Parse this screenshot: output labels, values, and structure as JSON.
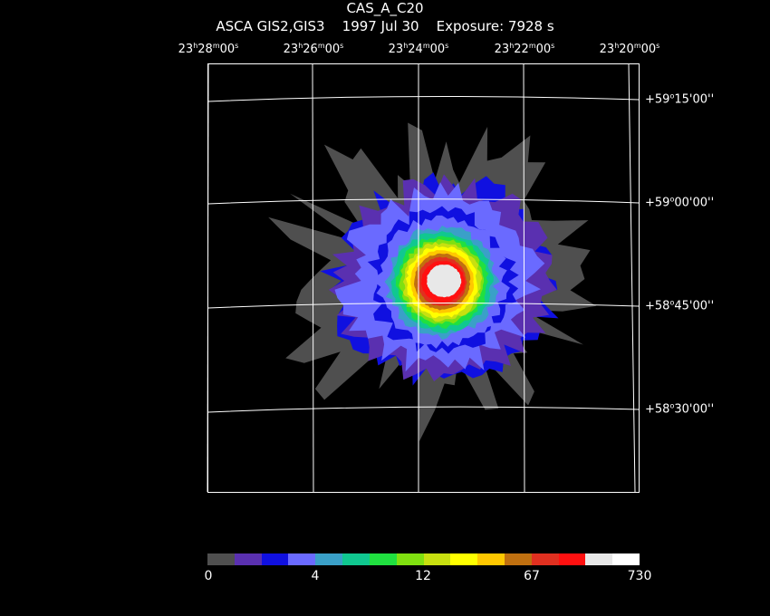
{
  "header": {
    "object": "CAS_A_C20",
    "instrument": "ASCA GIS2,GIS3",
    "date": "1997 Jul 30",
    "exposure": "Exposure: 7928 s"
  },
  "ra_labels": [
    {
      "h": "23",
      "m": "28",
      "s": "00"
    },
    {
      "h": "23",
      "m": "26",
      "s": "00"
    },
    {
      "h": "23",
      "m": "24",
      "s": "00"
    },
    {
      "h": "23",
      "m": "22",
      "s": "00"
    },
    {
      "h": "23",
      "m": "20",
      "s": "00"
    }
  ],
  "dec_labels": [
    {
      "d": "+59",
      "m": "15",
      "s": "00"
    },
    {
      "d": "+59",
      "m": "00",
      "s": "00"
    },
    {
      "d": "+58",
      "m": "45",
      "s": "00"
    },
    {
      "d": "+58",
      "m": "30",
      "s": "00"
    }
  ],
  "colorbar": {
    "colors": [
      "#4f4f4f",
      "#5a30b0",
      "#1010e0",
      "#6a6aff",
      "#3aa0c8",
      "#10c890",
      "#20e040",
      "#80e010",
      "#c8e010",
      "#ffff00",
      "#ffc800",
      "#c07010",
      "#e03020",
      "#ff1010",
      "#e8e8e8",
      "#ffffff"
    ],
    "labels": [
      "0",
      "4",
      "12",
      "67",
      "730"
    ]
  }
}
